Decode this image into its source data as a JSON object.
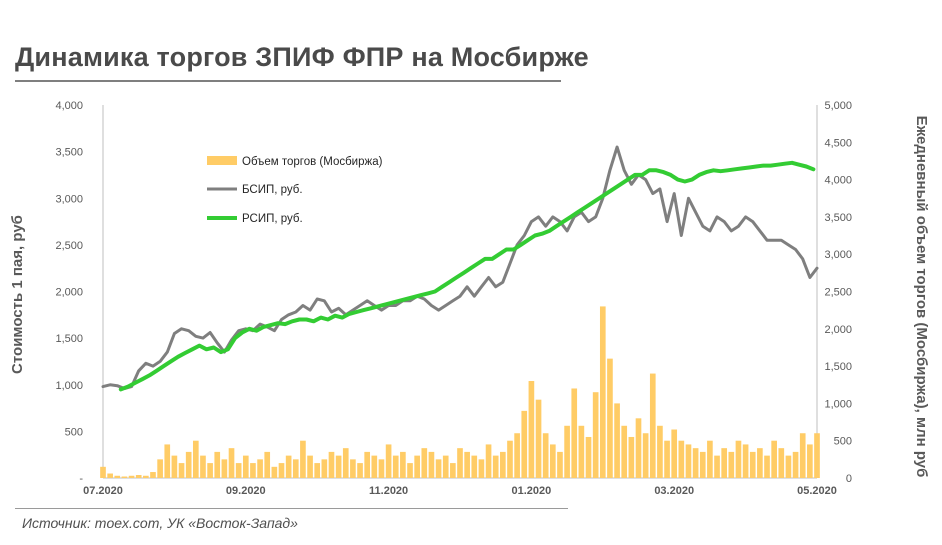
{
  "title": "Динамика торгов ЗПИФ ФПР на Мосбирже",
  "source": "Источник: moex.com, УК «Восток-Запад»",
  "chart_data": {
    "type": "line",
    "title": "Динамика торгов ЗПИФ ФПР на Мосбирже",
    "ylabel": "Стоимость 1 пая, руб",
    "y2label": "Ежедневный объем торгов (Мосбиржа), млн руб",
    "ylim": [
      0,
      4000
    ],
    "y2lim": [
      0,
      5000
    ],
    "yticks": [
      "-",
      "500",
      "1,000",
      "1,500",
      "2,000",
      "2,500",
      "3,000",
      "3,500",
      "4,000"
    ],
    "y2ticks": [
      "0",
      "500",
      "1,000",
      "1,500",
      "2,000",
      "2,500",
      "3,000",
      "3,500",
      "4,000",
      "4,500",
      "5,000"
    ],
    "xticks": [
      "07.2020",
      "09.2020",
      "11.2020",
      "01.2020",
      "03.2020",
      "05.2020"
    ],
    "xtick_positions": [
      0.5,
      2.5,
      4.5,
      6.5,
      8.5,
      10.5
    ],
    "xlim": [
      0,
      10.5
    ],
    "grid": false,
    "legend_position": "top-left",
    "colors": {
      "volume": "#ffcc66",
      "bsip": "#7f7f7f",
      "rsip": "#33cc33"
    },
    "series": [
      {
        "name": "Объем торгов  (Мосбиржа)",
        "kind": "bar",
        "axis": "right",
        "x": [
          0.5,
          0.6,
          0.7,
          0.8,
          0.9,
          1.0,
          1.1,
          1.2,
          1.3,
          1.4,
          1.5,
          1.6,
          1.7,
          1.8,
          1.9,
          2.0,
          2.1,
          2.2,
          2.3,
          2.4,
          2.5,
          2.6,
          2.7,
          2.8,
          2.9,
          3.0,
          3.1,
          3.2,
          3.3,
          3.4,
          3.5,
          3.6,
          3.7,
          3.8,
          3.9,
          4.0,
          4.1,
          4.2,
          4.3,
          4.4,
          4.5,
          4.6,
          4.7,
          4.8,
          4.9,
          5.0,
          5.1,
          5.2,
          5.3,
          5.4,
          5.5,
          5.6,
          5.7,
          5.8,
          5.9,
          6.0,
          6.1,
          6.2,
          6.3,
          6.4,
          6.5,
          6.6,
          6.7,
          6.8,
          6.9,
          7.0,
          7.1,
          7.2,
          7.3,
          7.4,
          7.5,
          7.6,
          7.7,
          7.8,
          7.9,
          8.0,
          8.1,
          8.2,
          8.3,
          8.4,
          8.5,
          8.6,
          8.7,
          8.8,
          8.9,
          9.0,
          9.1,
          9.2,
          9.3,
          9.4,
          9.5,
          9.6,
          9.7,
          9.8,
          9.9,
          10.0,
          10.1,
          10.2,
          10.3,
          10.4,
          10.5
        ],
        "values": [
          150,
          60,
          30,
          20,
          30,
          40,
          30,
          80,
          250,
          450,
          300,
          200,
          350,
          500,
          300,
          200,
          350,
          250,
          400,
          200,
          300,
          200,
          250,
          350,
          150,
          200,
          300,
          250,
          500,
          300,
          200,
          250,
          350,
          300,
          400,
          250,
          200,
          350,
          300,
          250,
          450,
          300,
          350,
          200,
          300,
          400,
          350,
          250,
          300,
          200,
          400,
          350,
          300,
          250,
          450,
          300,
          350,
          500,
          600,
          900,
          1300,
          1050,
          600,
          450,
          350,
          700,
          1200,
          700,
          550,
          1150,
          2300,
          1600,
          1000,
          700,
          550,
          800,
          600,
          1400,
          700,
          500,
          650,
          500,
          450,
          400,
          350,
          500,
          300,
          400,
          350,
          500,
          450,
          350,
          400,
          300,
          500,
          400,
          300,
          350,
          600,
          450,
          600
        ]
      },
      {
        "name": "БСИП, руб.",
        "kind": "line",
        "axis": "left",
        "x": [
          0.5,
          0.6,
          0.7,
          0.8,
          0.9,
          1.0,
          1.1,
          1.2,
          1.3,
          1.4,
          1.5,
          1.6,
          1.7,
          1.8,
          1.9,
          2.0,
          2.1,
          2.2,
          2.3,
          2.4,
          2.5,
          2.6,
          2.7,
          2.8,
          2.9,
          3.0,
          3.1,
          3.2,
          3.3,
          3.4,
          3.5,
          3.6,
          3.7,
          3.8,
          3.9,
          4.0,
          4.1,
          4.2,
          4.3,
          4.4,
          4.5,
          4.6,
          4.7,
          4.8,
          4.9,
          5.0,
          5.1,
          5.2,
          5.3,
          5.4,
          5.5,
          5.6,
          5.7,
          5.8,
          5.9,
          6.0,
          6.1,
          6.2,
          6.3,
          6.4,
          6.5,
          6.6,
          6.7,
          6.8,
          6.9,
          7.0,
          7.1,
          7.2,
          7.3,
          7.4,
          7.5,
          7.6,
          7.7,
          7.8,
          7.9,
          8.0,
          8.1,
          8.2,
          8.3,
          8.4,
          8.5,
          8.6,
          8.7,
          8.8,
          8.9,
          9.0,
          9.1,
          9.2,
          9.3,
          9.4,
          9.5,
          9.6,
          9.7,
          9.8,
          9.9,
          10.0,
          10.1,
          10.2,
          10.3,
          10.4,
          10.5
        ],
        "values": [
          980,
          1000,
          990,
          960,
          980,
          1150,
          1230,
          1200,
          1250,
          1350,
          1550,
          1600,
          1580,
          1520,
          1500,
          1560,
          1450,
          1350,
          1480,
          1580,
          1600,
          1580,
          1650,
          1620,
          1580,
          1700,
          1750,
          1780,
          1850,
          1800,
          1920,
          1900,
          1780,
          1820,
          1750,
          1800,
          1850,
          1900,
          1850,
          1800,
          1850,
          1850,
          1900,
          1900,
          1950,
          1920,
          1850,
          1800,
          1850,
          1900,
          1950,
          2050,
          1950,
          2050,
          2150,
          2050,
          2100,
          2300,
          2500,
          2600,
          2750,
          2800,
          2700,
          2800,
          2750,
          2650,
          2800,
          2850,
          2750,
          2800,
          3000,
          3300,
          3550,
          3300,
          3150,
          3250,
          3200,
          3050,
          3100,
          2750,
          3050,
          2600,
          3000,
          2850,
          2700,
          2650,
          2800,
          2750,
          2650,
          2700,
          2800,
          2750,
          2650,
          2550,
          2550,
          2550,
          2500,
          2450,
          2350,
          2150,
          2250
        ]
      },
      {
        "name": "РСИП, руб.",
        "kind": "line",
        "axis": "left",
        "x": [
          0.75,
          0.85,
          0.95,
          1.05,
          1.15,
          1.25,
          1.35,
          1.45,
          1.55,
          1.65,
          1.75,
          1.85,
          1.95,
          2.05,
          2.15,
          2.25,
          2.35,
          2.45,
          2.55,
          2.65,
          2.75,
          2.85,
          2.95,
          3.05,
          3.15,
          3.25,
          3.35,
          3.45,
          3.55,
          3.65,
          3.75,
          3.85,
          3.95,
          4.05,
          4.15,
          4.25,
          4.35,
          4.45,
          4.55,
          4.65,
          4.75,
          4.85,
          4.95,
          5.05,
          5.15,
          5.25,
          5.35,
          5.45,
          5.55,
          5.65,
          5.75,
          5.85,
          5.95,
          6.05,
          6.15,
          6.25,
          6.35,
          6.45,
          6.55,
          6.65,
          6.75,
          6.85,
          6.95,
          7.05,
          7.15,
          7.25,
          7.35,
          7.45,
          7.55,
          7.65,
          7.75,
          7.85,
          7.95,
          8.05,
          8.15,
          8.25,
          8.35,
          8.45,
          8.55,
          8.65,
          8.75,
          8.85,
          8.95,
          9.05,
          9.15,
          9.25,
          9.35,
          9.45,
          9.55,
          9.65,
          9.75,
          9.85,
          9.95,
          10.05,
          10.15,
          10.25,
          10.35,
          10.45
        ],
        "values": [
          950,
          980,
          1020,
          1060,
          1100,
          1150,
          1200,
          1250,
          1300,
          1340,
          1380,
          1420,
          1380,
          1400,
          1350,
          1380,
          1500,
          1560,
          1600,
          1580,
          1620,
          1640,
          1660,
          1650,
          1680,
          1700,
          1700,
          1680,
          1720,
          1700,
          1740,
          1720,
          1760,
          1780,
          1800,
          1820,
          1840,
          1860,
          1880,
          1900,
          1920,
          1940,
          1960,
          1980,
          2000,
          2050,
          2100,
          2150,
          2200,
          2250,
          2300,
          2350,
          2350,
          2400,
          2450,
          2450,
          2500,
          2550,
          2600,
          2620,
          2650,
          2700,
          2750,
          2800,
          2850,
          2900,
          2950,
          3000,
          3050,
          3100,
          3150,
          3200,
          3250,
          3250,
          3300,
          3300,
          3280,
          3250,
          3200,
          3180,
          3200,
          3250,
          3280,
          3300,
          3290,
          3300,
          3310,
          3320,
          3330,
          3340,
          3350,
          3350,
          3360,
          3370,
          3380,
          3360,
          3340,
          3310
        ]
      }
    ]
  }
}
